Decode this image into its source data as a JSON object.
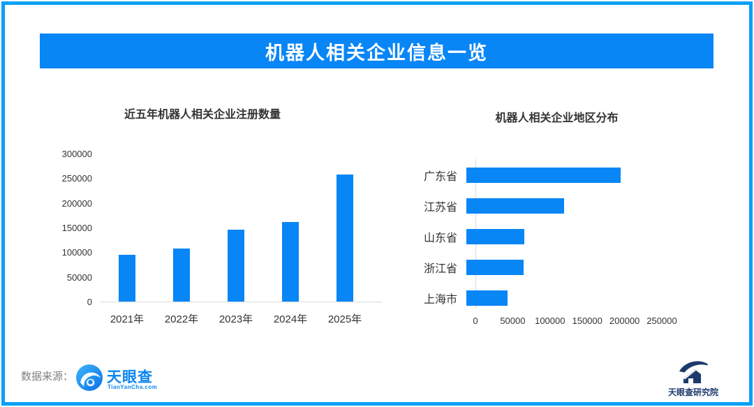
{
  "page": {
    "title": "机器人相关企业信息一览"
  },
  "colors": {
    "accent_blue": "#0886f6",
    "border_blue": "#08a0f8",
    "axis_gray": "#d9d9d9",
    "text_dark": "#333333",
    "text_gray": "#808080",
    "tyc_blue": "#0b85f0",
    "institute_navy": "#1d3a6d"
  },
  "chart_data": [
    {
      "type": "bar",
      "orientation": "vertical",
      "title": "近五年机器人相关企业注册数量",
      "categories": [
        "2021年",
        "2022年",
        "2023年",
        "2024年",
        "2025年"
      ],
      "values": [
        95000,
        107000,
        146000,
        161000,
        258000
      ],
      "ylim": [
        0,
        300000
      ],
      "yticks": [
        0,
        50000,
        100000,
        150000,
        200000,
        250000,
        300000
      ],
      "grid": false,
      "bar_color": "#0886f6"
    },
    {
      "type": "bar",
      "orientation": "horizontal",
      "title": "机器人相关企业地区分布",
      "categories": [
        "广东省",
        "江苏省",
        "山东省",
        "浙江省",
        "上海市"
      ],
      "values": [
        207000,
        131000,
        78000,
        77000,
        55000
      ],
      "xlim": [
        0,
        250000
      ],
      "xticks": [
        0,
        50000,
        100000,
        150000,
        200000,
        250000
      ],
      "grid": false,
      "bar_color": "#0886f6"
    }
  ],
  "footer": {
    "source_label": "数据来源：",
    "tianyancha_name": "天眼查",
    "tianyancha_domain": "TianYanCha.com",
    "institute_name": "天眼查研究院"
  }
}
